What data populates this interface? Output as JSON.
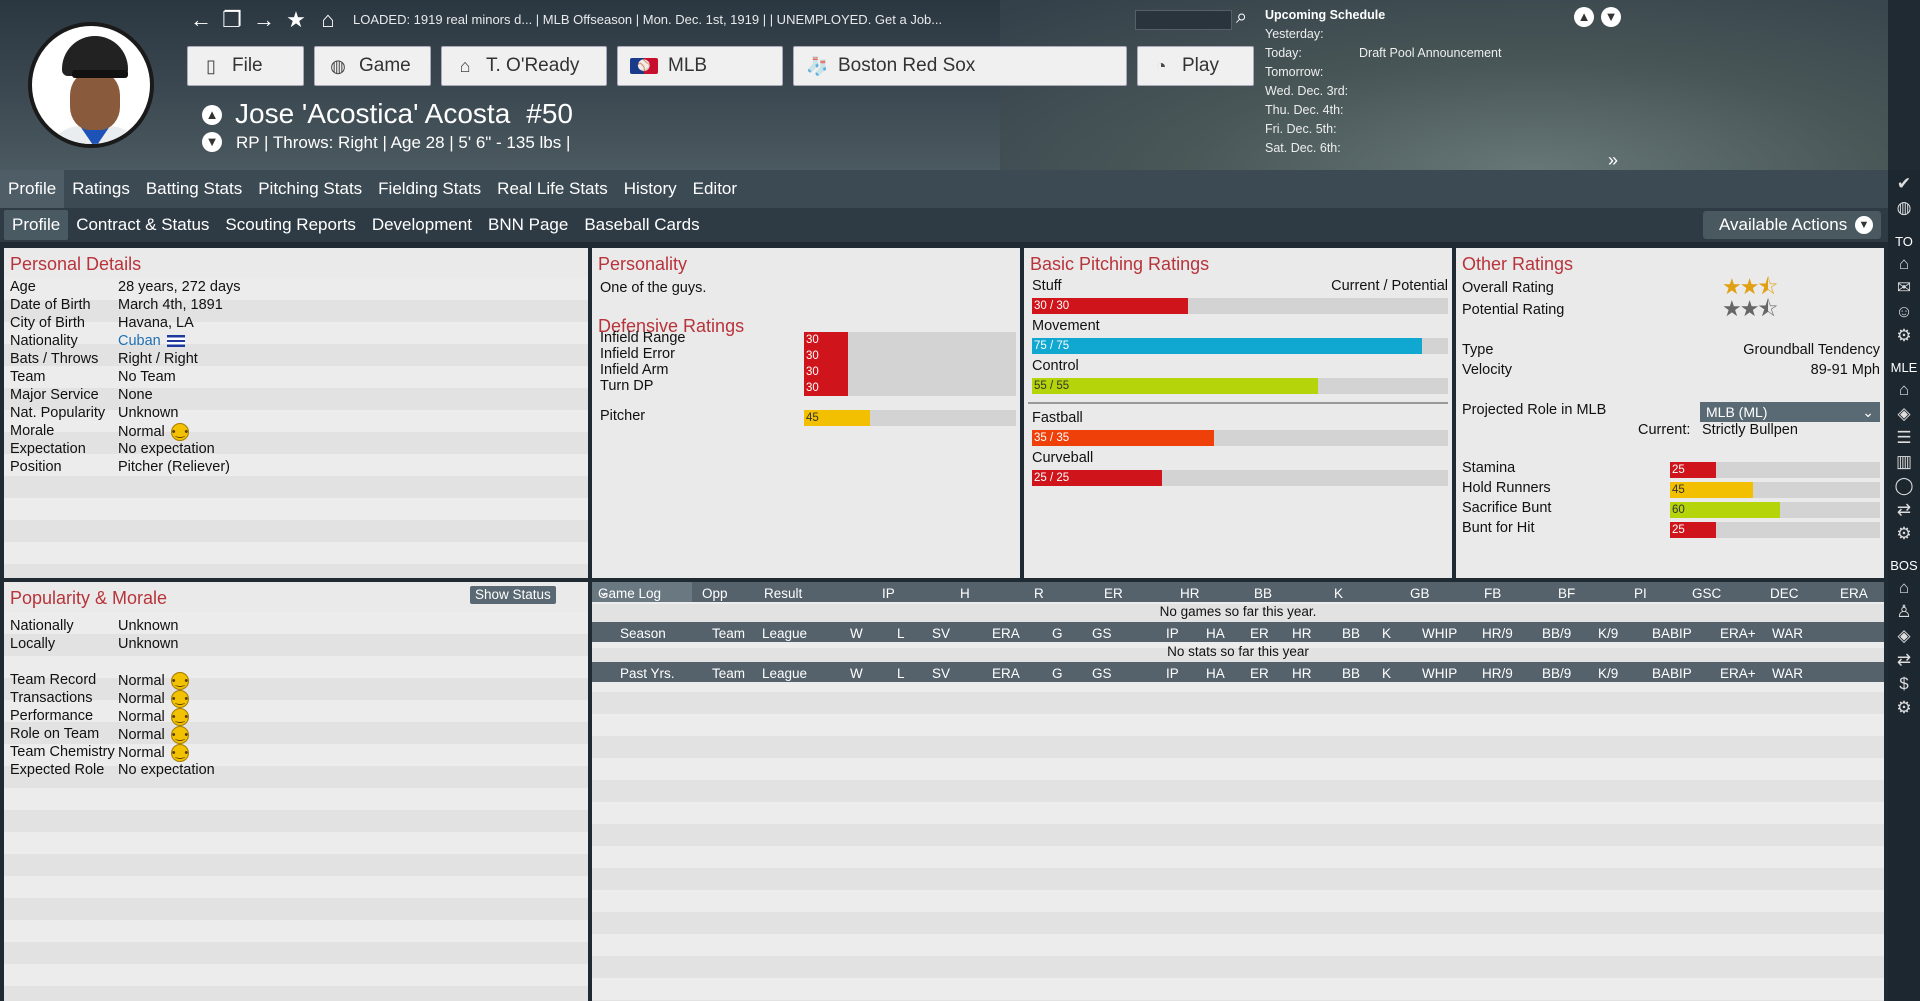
{
  "topbar": {
    "loaded_text": "LOADED: 1919 real minors d...  |  MLB Offseason  |  Mon. Dec. 1st, 1919  |    |  UNEMPLOYED. Get a Job...",
    "buttons": [
      {
        "label": "File",
        "icon": "file-icon"
      },
      {
        "label": "Game",
        "icon": "globe-icon"
      },
      {
        "label": "T. O'Ready",
        "icon": "home-icon"
      },
      {
        "label": "MLB",
        "icon": "mlb-logo-icon"
      },
      {
        "label": "Boston Red Sox",
        "icon": "red-sox-logo-icon"
      },
      {
        "label": "Play",
        "icon": "baseball-icon"
      }
    ]
  },
  "player": {
    "name": "Jose 'Acostica' Acosta",
    "number": "#50",
    "info": "RP | Throws: Right  |  Age 28  |  5' 6\" - 135 lbs  |"
  },
  "schedule": {
    "title": "Upcoming Schedule",
    "rows": [
      {
        "label": "Yesterday:",
        "value": ""
      },
      {
        "label": "Today:",
        "value": "Draft Pool Announcement"
      },
      {
        "label": "Tomorrow:",
        "value": ""
      },
      {
        "label": "Wed. Dec. 3rd:",
        "value": ""
      },
      {
        "label": "Thu. Dec. 4th:",
        "value": ""
      },
      {
        "label": "Fri. Dec. 5th:",
        "value": ""
      },
      {
        "label": "Sat. Dec. 6th:",
        "value": ""
      }
    ]
  },
  "tabs1": [
    "Profile",
    "Ratings",
    "Batting Stats",
    "Pitching Stats",
    "Fielding Stats",
    "Real Life Stats",
    "History",
    "Editor"
  ],
  "tabs2": [
    "Profile",
    "Contract & Status",
    "Scouting Reports",
    "Development",
    "BNN Page",
    "Baseball Cards"
  ],
  "available_actions": "Available Actions",
  "right_sidebar": {
    "labels": [
      "TO",
      "MLE",
      "BOS"
    ]
  },
  "personal": {
    "title": "Personal Details",
    "rows": [
      {
        "k": "Age",
        "v": "28 years, 272 days"
      },
      {
        "k": "Date of Birth",
        "v": "March 4th, 1891"
      },
      {
        "k": "City of Birth",
        "v": "Havana, LA"
      },
      {
        "k": "Nationality",
        "v": "Cuban"
      },
      {
        "k": "Bats / Throws",
        "v": "Right / Right"
      },
      {
        "k": "Team",
        "v": "No Team"
      },
      {
        "k": "Major Service",
        "v": "None"
      },
      {
        "k": "Nat. Popularity",
        "v": "Unknown"
      },
      {
        "k": "Morale",
        "v": "Normal"
      },
      {
        "k": "Expectation",
        "v": "No expectation"
      },
      {
        "k": "Position",
        "v": "Pitcher (Reliever)"
      }
    ]
  },
  "personality": {
    "title": "Personality",
    "text": "One of the guys."
  },
  "defensive": {
    "title": "Defensive Ratings",
    "rows": [
      {
        "k": "Infield Range",
        "v": 30,
        "color": "#d0141b"
      },
      {
        "k": "Infield Error",
        "v": 30,
        "color": "#d0141b"
      },
      {
        "k": "Infield Arm",
        "v": 30,
        "color": "#d0141b"
      },
      {
        "k": "Turn DP",
        "v": 30,
        "color": "#d0141b"
      },
      {
        "k": "Pitcher",
        "v": 45,
        "color": "#f2c000"
      }
    ]
  },
  "pitching": {
    "title": "Basic Pitching Ratings",
    "header": "Current / Potential",
    "rows": [
      {
        "k": "Stuff",
        "label": "30 / 30",
        "v": 30,
        "color": "#d0141b"
      },
      {
        "k": "Movement",
        "label": "75 / 75",
        "v": 75,
        "color": "#10a7d0"
      },
      {
        "k": "Control",
        "label": "55 / 55",
        "v": 55,
        "color": "#b5d40a"
      },
      {
        "k": "Fastball",
        "label": "35 / 35",
        "v": 35,
        "color": "#f0400a"
      },
      {
        "k": "Curveball",
        "label": "25 / 25",
        "v": 25,
        "color": "#d0141b"
      }
    ]
  },
  "other": {
    "title": "Other Ratings",
    "overall_label": "Overall Rating",
    "overall_stars": 2.5,
    "potential_label": "Potential Rating",
    "potential_stars": 2.5,
    "type_label": "Type",
    "type_value": "Groundball Tendency",
    "velocity_label": "Velocity",
    "velocity_value": "89-91 Mph",
    "proj_label": "Projected Role in MLB",
    "proj_select": "MLB (ML)",
    "current_label": "Current:",
    "current_value": "Strictly Bullpen",
    "bars": [
      {
        "k": "Stamina",
        "v": 25,
        "color": "#d0141b"
      },
      {
        "k": "Hold Runners",
        "v": 45,
        "color": "#f2c000"
      },
      {
        "k": "Sacrifice Bunt",
        "v": 60,
        "color": "#b5d40a"
      },
      {
        "k": "Bunt for Hit",
        "v": 25,
        "color": "#d0141b"
      }
    ]
  },
  "popularity": {
    "title": "Popularity & Morale",
    "show_status": "Show Status",
    "rows": [
      {
        "k": "Nationally",
        "v": "Unknown"
      },
      {
        "k": "Locally",
        "v": "Unknown"
      },
      {
        "k": "",
        "v": ""
      },
      {
        "k": "Team Record",
        "v": "Normal"
      },
      {
        "k": "Transactions",
        "v": "Normal"
      },
      {
        "k": "Performance",
        "v": "Normal"
      },
      {
        "k": "Role on Team",
        "v": "Normal"
      },
      {
        "k": "Team Chemistry",
        "v": "Normal"
      },
      {
        "k": "Expected Role",
        "v": "No expectation"
      }
    ]
  },
  "gamelog": {
    "select": "Game Log",
    "cols": [
      "Opp",
      "Result",
      "IP",
      "H",
      "R",
      "ER",
      "HR",
      "BB",
      "K",
      "GB",
      "FB",
      "BF",
      "PI",
      "GSC",
      "DEC",
      "ERA"
    ],
    "empty": "No games so far this year."
  },
  "season": {
    "cols": [
      "Season",
      "Team",
      "League",
      "W",
      "L",
      "SV",
      "ERA",
      "G",
      "GS",
      "IP",
      "HA",
      "ER",
      "HR",
      "BB",
      "K",
      "WHIP",
      "HR/9",
      "BB/9",
      "K/9",
      "BABIP",
      "ERA+",
      "WAR"
    ],
    "empty": "No stats so far this year"
  },
  "past": {
    "cols": [
      "Past Yrs.",
      "Team",
      "League",
      "W",
      "L",
      "SV",
      "ERA",
      "G",
      "GS",
      "IP",
      "HA",
      "ER",
      "HR",
      "BB",
      "K",
      "WHIP",
      "HR/9",
      "BB/9",
      "K/9",
      "BABIP",
      "ERA+",
      "WAR"
    ]
  }
}
